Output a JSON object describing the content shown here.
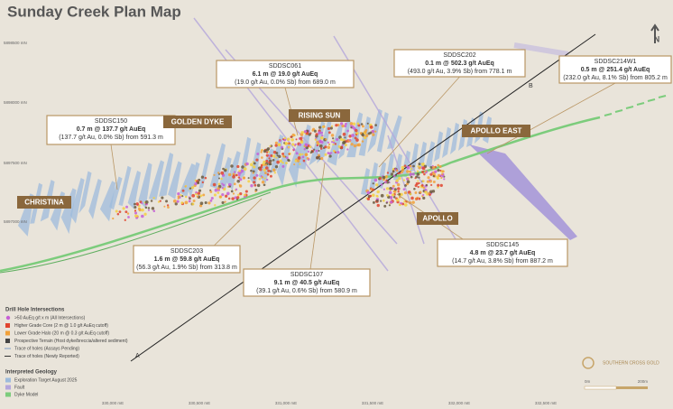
{
  "title": "Sunday Creek Plan Map",
  "north": "N",
  "callouts": [
    {
      "hole": "SDDSC061",
      "intercept": "6.1 m @ 19.0 g/t AuEq",
      "detail": "(19.0 g/t Au, 0.0% Sb) from 689.0 m"
    },
    {
      "hole": "SDDSC202",
      "intercept": "0.1 m @ 502.3 g/t AuEq",
      "detail": "(493.0 g/t Au, 3.9% Sb) from 778.1 m"
    },
    {
      "hole": "SDDSC214W1",
      "intercept": "0.5 m @ 251.4 g/t AuEq",
      "detail": "(232.0 g/t Au, 8.1% Sb) from 805.2 m"
    },
    {
      "hole": "SDDSC150",
      "intercept": "0.7 m @ 137.7 g/t AuEq",
      "detail": "(137.7 g/t Au, 0.0% Sb) from 591.3 m"
    },
    {
      "hole": "SDDSC203",
      "intercept": "1.6 m @ 59.8 g/t AuEq",
      "detail": "(56.3 g/t Au, 1.9% Sb) from 313.8 m"
    },
    {
      "hole": "SDDSC107",
      "intercept": "9.1 m @ 40.5 g/t AuEq",
      "detail": "(39.1 g/t Au, 0.6% Sb) from 580.9 m"
    },
    {
      "hole": "SDDSC145",
      "intercept": "4.8 m @ 23.7 g/t AuEq",
      "detail": "(14.7 g/t Au, 3.8% Sb) from 887.2 m"
    }
  ],
  "places": [
    "GOLDEN DYKE",
    "RISING SUN",
    "APOLLO EAST",
    "CHRISTINA",
    "APOLLO"
  ],
  "sections": [
    "A",
    "B"
  ],
  "northings": [
    "5898500 mN",
    "5898000 mN",
    "5897500 mN",
    "5897000 mN"
  ],
  "eastings": [
    "330,000 mE",
    "330,500 mE",
    "331,000 mE",
    "331,500 mE",
    "332,000 mE",
    "332,500 mE"
  ],
  "legend": {
    "drill_title": "Drill Hole Intersections",
    "drill_items": [
      ">50 AuEq g/t x m (All Intersections)",
      "Higher Grade Core (2 m @ 1.0 g/t AuEq cutoff)",
      "Lower Grade Halo (20 m @ 0.3 g/t AuEq cutoff)",
      "Prospective Terrain (Host dyke/breccia/altered sediment)",
      "Trace of holes (Assays Pending)",
      "Trace of holes (Newly Reported)"
    ],
    "geology_title": "Interpreted Geology",
    "geology_items": [
      "Exploration Target August 2025",
      "Fault",
      "Dyke Model"
    ]
  },
  "logo": "SOUTHERN CROSS GOLD",
  "scale": [
    "0m",
    "200m"
  ]
}
